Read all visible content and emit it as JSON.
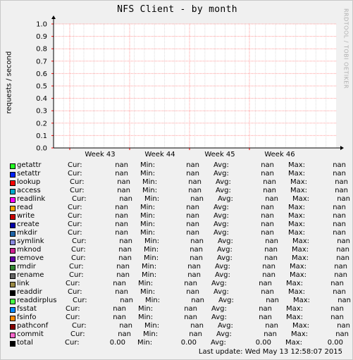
{
  "title": "NFS Client - by month",
  "watermark": "RRDTOOL / TOBI OETIKER",
  "last_update": "Last update: Wed May 13 12:58:07 2015",
  "legend_headers": {
    "cur": "Cur:",
    "min": "Min:",
    "avg": "Avg:",
    "max": "Max:"
  },
  "chart_data": {
    "type": "line",
    "title": "NFS Client - by month",
    "ylabel": "requests / second",
    "xlabel": "",
    "ylim": [
      0,
      1.0
    ],
    "yticks": [
      "0.0",
      "0.1",
      "0.2",
      "0.3",
      "0.4",
      "0.5",
      "0.6",
      "0.7",
      "0.8",
      "0.9",
      "1.0"
    ],
    "xticks": [
      "Week 43",
      "Week 44",
      "Week 45",
      "Week 46"
    ],
    "grid": true,
    "legend_position": "bottom",
    "series": [
      {
        "name": "getattr",
        "color": "#22ff22",
        "cur": "nan",
        "min": "nan",
        "avg": "nan",
        "max": "nan"
      },
      {
        "name": "setattr",
        "color": "#0022ff",
        "cur": "nan",
        "min": "nan",
        "avg": "nan",
        "max": "nan"
      },
      {
        "name": "lookup",
        "color": "#ff0000",
        "cur": "nan",
        "min": "nan",
        "avg": "nan",
        "max": "nan"
      },
      {
        "name": "access",
        "color": "#00aacc",
        "cur": "nan",
        "min": "nan",
        "avg": "nan",
        "max": "nan"
      },
      {
        "name": "readlink",
        "color": "#ff00ff",
        "cur": "nan",
        "min": "nan",
        "avg": "nan",
        "max": "nan"
      },
      {
        "name": "read",
        "color": "#ffa500",
        "cur": "nan",
        "min": "nan",
        "avg": "nan",
        "max": "nan"
      },
      {
        "name": "write",
        "color": "#cc0000",
        "cur": "nan",
        "min": "nan",
        "avg": "nan",
        "max": "nan"
      },
      {
        "name": "create",
        "color": "#0000aa",
        "cur": "nan",
        "min": "nan",
        "avg": "nan",
        "max": "nan"
      },
      {
        "name": "mkdir",
        "color": "#1e64a8",
        "cur": "nan",
        "min": "nan",
        "avg": "nan",
        "max": "nan"
      },
      {
        "name": "symlink",
        "color": "#8888dd",
        "cur": "nan",
        "min": "nan",
        "avg": "nan",
        "max": "nan"
      },
      {
        "name": "mknod",
        "color": "#d02090",
        "cur": "nan",
        "min": "nan",
        "avg": "nan",
        "max": "nan"
      },
      {
        "name": "remove",
        "color": "#6600aa",
        "cur": "nan",
        "min": "nan",
        "avg": "nan",
        "max": "nan"
      },
      {
        "name": "rmdir",
        "color": "#338833",
        "cur": "nan",
        "min": "nan",
        "avg": "nan",
        "max": "nan"
      },
      {
        "name": "rename",
        "color": "#666666",
        "cur": "nan",
        "min": "nan",
        "avg": "nan",
        "max": "nan"
      },
      {
        "name": "link",
        "color": "#998844",
        "cur": "nan",
        "min": "nan",
        "avg": "nan",
        "max": "nan"
      },
      {
        "name": "readdir",
        "color": "#000000",
        "cur": "nan",
        "min": "nan",
        "avg": "nan",
        "max": "nan"
      },
      {
        "name": "readdirplus",
        "color": "#44ff44",
        "cur": "nan",
        "min": "nan",
        "avg": "nan",
        "max": "nan"
      },
      {
        "name": "fsstat",
        "color": "#0088ff",
        "cur": "nan",
        "min": "nan",
        "avg": "nan",
        "max": "nan"
      },
      {
        "name": "fsinfo",
        "color": "#ff8800",
        "cur": "nan",
        "min": "nan",
        "avg": "nan",
        "max": "nan"
      },
      {
        "name": "pathconf",
        "color": "#880000",
        "cur": "nan",
        "min": "nan",
        "avg": "nan",
        "max": "nan"
      },
      {
        "name": "commit",
        "color": "#ff66cc",
        "cur": "nan",
        "min": "nan",
        "avg": "nan",
        "max": "nan"
      },
      {
        "name": "total",
        "color": "#000000",
        "cur": "0.00",
        "min": "0.00",
        "avg": "0.00",
        "max": "0.00"
      }
    ]
  }
}
